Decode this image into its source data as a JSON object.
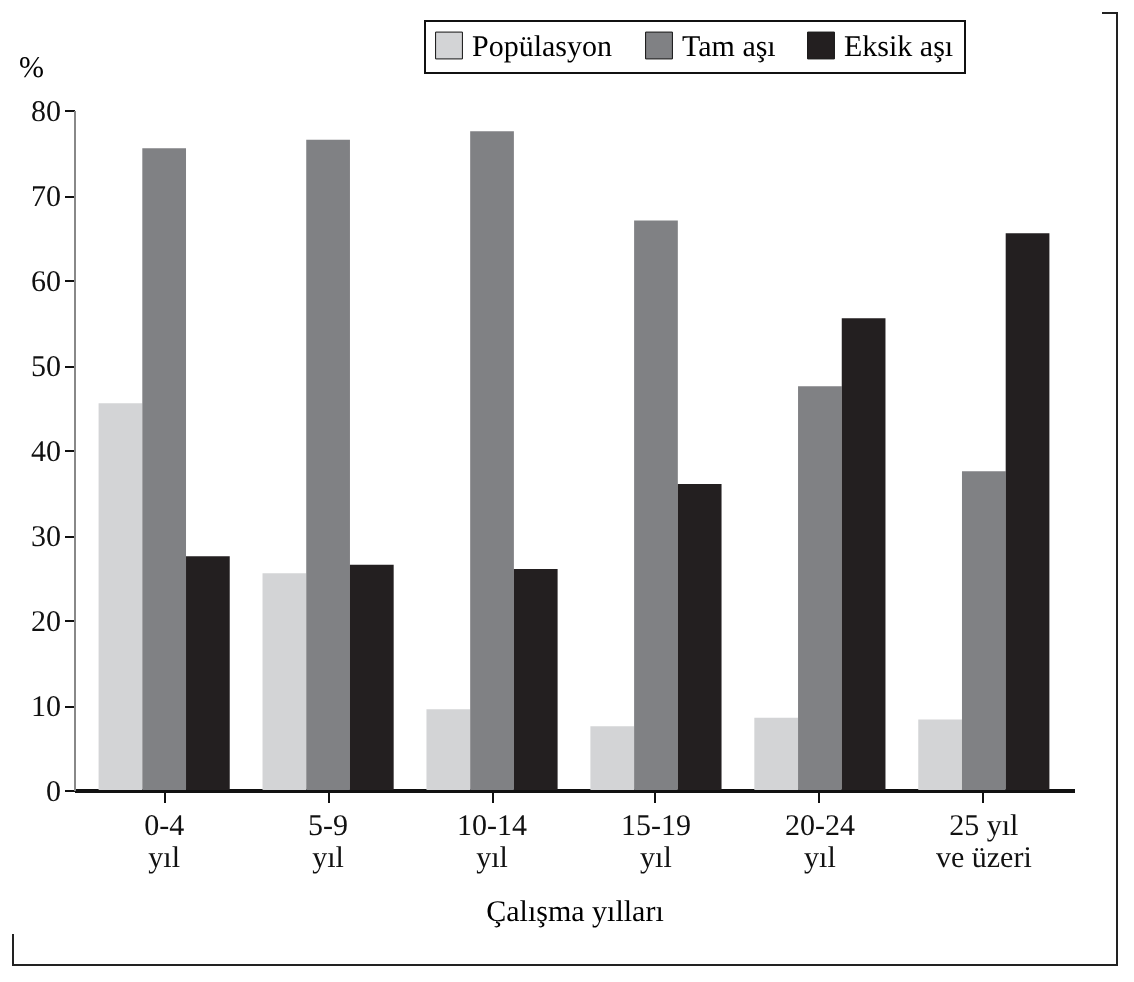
{
  "chart_data": {
    "type": "bar",
    "xlabel": "Çalışma yılları",
    "ylabel": "%",
    "categories": [
      "0-4\nyıl",
      "5-9\nyıl",
      "10-14\nyıl",
      "15-19\nyıl",
      "20-24\nyıl",
      "25 yıl\nve üzeri"
    ],
    "series": [
      {
        "name": "Popülasyon",
        "color": "#d3d4d6",
        "values": [
          45.5,
          25.5,
          9.5,
          7.5,
          8.5,
          8.3
        ]
      },
      {
        "name": "Tam aşı",
        "color": "#808184",
        "values": [
          75.5,
          76.5,
          77.5,
          67,
          47.5,
          37.5
        ]
      },
      {
        "name": "Eksik aşı",
        "color": "#231f20",
        "values": [
          27.5,
          26.5,
          26,
          36,
          55.5,
          65.5
        ]
      }
    ],
    "ylim": [
      0,
      80
    ],
    "yticks": [
      0,
      10,
      20,
      30,
      40,
      50,
      60,
      70,
      80
    ],
    "legend": "top right",
    "grid": false
  }
}
